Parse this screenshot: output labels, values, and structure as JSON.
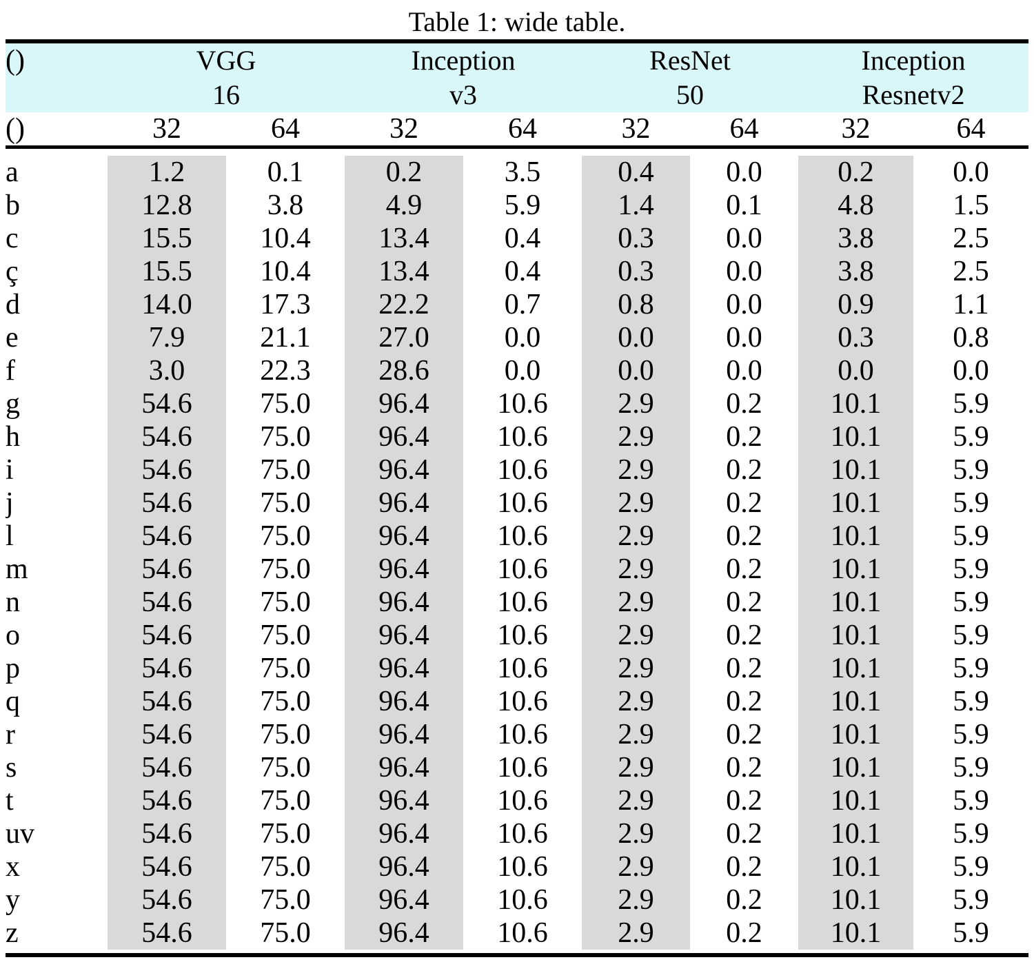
{
  "caption": "Table 1: wide table.",
  "colors": {
    "header_bg": "#d9f6f9",
    "shaded_col_bg": "#d9d9d9",
    "rule_color": "#000000"
  },
  "table": {
    "corner_top": "()",
    "corner_sub": "()",
    "groups": [
      {
        "line1": "VGG",
        "line2": "16"
      },
      {
        "line1": "Inception",
        "line2": "v3"
      },
      {
        "line1": "ResNet",
        "line2": "50"
      },
      {
        "line1": "Inception",
        "line2": "Resnetv2"
      }
    ],
    "subcolumns": [
      "32",
      "64",
      "32",
      "64",
      "32",
      "64",
      "32",
      "64"
    ],
    "rows": [
      {
        "label": "a",
        "values": [
          "1.2",
          "0.1",
          "0.2",
          "3.5",
          "0.4",
          "0.0",
          "0.2",
          "0.0"
        ]
      },
      {
        "label": "b",
        "values": [
          "12.8",
          "3.8",
          "4.9",
          "5.9",
          "1.4",
          "0.1",
          "4.8",
          "1.5"
        ]
      },
      {
        "label": "c",
        "values": [
          "15.5",
          "10.4",
          "13.4",
          "0.4",
          "0.3",
          "0.0",
          "3.8",
          "2.5"
        ]
      },
      {
        "label": "ç",
        "values": [
          "15.5",
          "10.4",
          "13.4",
          "0.4",
          "0.3",
          "0.0",
          "3.8",
          "2.5"
        ]
      },
      {
        "label": "d",
        "values": [
          "14.0",
          "17.3",
          "22.2",
          "0.7",
          "0.8",
          "0.0",
          "0.9",
          "1.1"
        ]
      },
      {
        "label": "e",
        "values": [
          "7.9",
          "21.1",
          "27.0",
          "0.0",
          "0.0",
          "0.0",
          "0.3",
          "0.8"
        ]
      },
      {
        "label": "f",
        "values": [
          "3.0",
          "22.3",
          "28.6",
          "0.0",
          "0.0",
          "0.0",
          "0.0",
          "0.0"
        ]
      },
      {
        "label": "g",
        "values": [
          "54.6",
          "75.0",
          "96.4",
          "10.6",
          "2.9",
          "0.2",
          "10.1",
          "5.9"
        ]
      },
      {
        "label": "h",
        "values": [
          "54.6",
          "75.0",
          "96.4",
          "10.6",
          "2.9",
          "0.2",
          "10.1",
          "5.9"
        ]
      },
      {
        "label": "i",
        "values": [
          "54.6",
          "75.0",
          "96.4",
          "10.6",
          "2.9",
          "0.2",
          "10.1",
          "5.9"
        ]
      },
      {
        "label": "j",
        "values": [
          "54.6",
          "75.0",
          "96.4",
          "10.6",
          "2.9",
          "0.2",
          "10.1",
          "5.9"
        ]
      },
      {
        "label": "l",
        "values": [
          "54.6",
          "75.0",
          "96.4",
          "10.6",
          "2.9",
          "0.2",
          "10.1",
          "5.9"
        ]
      },
      {
        "label": "m",
        "values": [
          "54.6",
          "75.0",
          "96.4",
          "10.6",
          "2.9",
          "0.2",
          "10.1",
          "5.9"
        ]
      },
      {
        "label": "n",
        "values": [
          "54.6",
          "75.0",
          "96.4",
          "10.6",
          "2.9",
          "0.2",
          "10.1",
          "5.9"
        ]
      },
      {
        "label": "o",
        "values": [
          "54.6",
          "75.0",
          "96.4",
          "10.6",
          "2.9",
          "0.2",
          "10.1",
          "5.9"
        ]
      },
      {
        "label": "p",
        "values": [
          "54.6",
          "75.0",
          "96.4",
          "10.6",
          "2.9",
          "0.2",
          "10.1",
          "5.9"
        ]
      },
      {
        "label": "q",
        "values": [
          "54.6",
          "75.0",
          "96.4",
          "10.6",
          "2.9",
          "0.2",
          "10.1",
          "5.9"
        ]
      },
      {
        "label": "r",
        "values": [
          "54.6",
          "75.0",
          "96.4",
          "10.6",
          "2.9",
          "0.2",
          "10.1",
          "5.9"
        ]
      },
      {
        "label": "s",
        "values": [
          "54.6",
          "75.0",
          "96.4",
          "10.6",
          "2.9",
          "0.2",
          "10.1",
          "5.9"
        ]
      },
      {
        "label": "t",
        "values": [
          "54.6",
          "75.0",
          "96.4",
          "10.6",
          "2.9",
          "0.2",
          "10.1",
          "5.9"
        ]
      },
      {
        "label": "uv",
        "values": [
          "54.6",
          "75.0",
          "96.4",
          "10.6",
          "2.9",
          "0.2",
          "10.1",
          "5.9"
        ]
      },
      {
        "label": "x",
        "values": [
          "54.6",
          "75.0",
          "96.4",
          "10.6",
          "2.9",
          "0.2",
          "10.1",
          "5.9"
        ]
      },
      {
        "label": "y",
        "values": [
          "54.6",
          "75.0",
          "96.4",
          "10.6",
          "2.9",
          "0.2",
          "10.1",
          "5.9"
        ]
      },
      {
        "label": "z",
        "values": [
          "54.6",
          "75.0",
          "96.4",
          "10.6",
          "2.9",
          "0.2",
          "10.1",
          "5.9"
        ]
      }
    ]
  }
}
